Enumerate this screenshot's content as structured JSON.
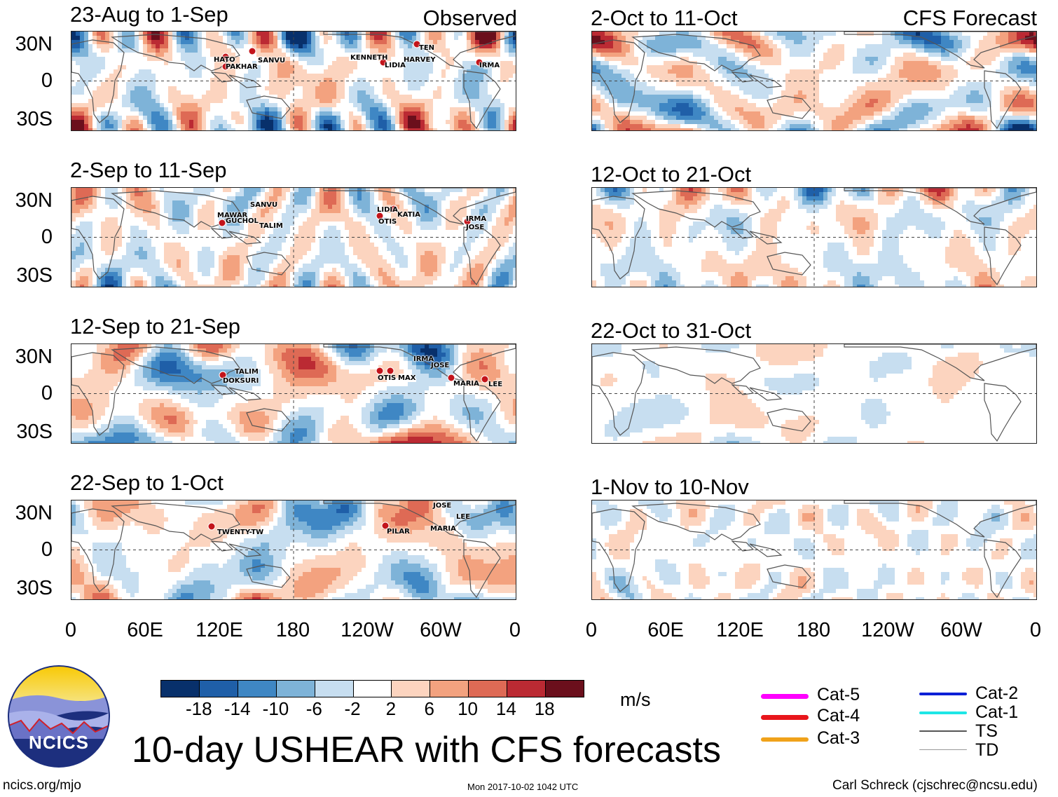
{
  "title": "10-day USHEAR with CFS forecasts",
  "header_left_tag": "Observed",
  "header_right_tag": "CFS Forecast",
  "observed_panels": [
    {
      "label": "23-Aug to 1-Sep",
      "storms": [
        "HATO",
        "SANVU",
        "PAKHAR",
        "TEN",
        "KENNETH",
        "LIDIA",
        "HARVEY",
        "IRMA"
      ]
    },
    {
      "label": "2-Sep to 11-Sep",
      "storms": [
        "SANVU",
        "MAWAR",
        "GUCHOL",
        "TALIM",
        "LIDIA",
        "KATIA",
        "OTIS",
        "IRMA",
        "JOSE"
      ]
    },
    {
      "label": "12-Sep to 21-Sep",
      "storms": [
        "TALIM",
        "DOKSURI",
        "IRMA",
        "JOSE",
        "OTIS",
        "MAX",
        "MARIA",
        "LEE"
      ]
    },
    {
      "label": "22-Sep to 1-Oct",
      "storms": [
        "TWENTY-TW",
        "JOSE",
        "LEE",
        "PILAR",
        "MARIA"
      ]
    }
  ],
  "forecast_panels": [
    {
      "label": "2-Oct to 11-Oct"
    },
    {
      "label": "12-Oct to 21-Oct"
    },
    {
      "label": "22-Oct to 31-Oct"
    },
    {
      "label": "1-Nov to 10-Nov"
    }
  ],
  "lat_labels": [
    "30N",
    "0",
    "30S"
  ],
  "lon_labels": [
    "0",
    "60E",
    "120E",
    "180",
    "120W",
    "60W",
    "0"
  ],
  "colorbar": {
    "unit": "m/s",
    "labels": [
      "-18",
      "-14",
      "-10",
      "-6",
      "-2",
      "2",
      "6",
      "10",
      "14",
      "18"
    ],
    "colors": [
      "#08306b",
      "#1f5fa8",
      "#3f87c4",
      "#7eb3d8",
      "#c7def0",
      "#ffffff",
      "#fcd4bf",
      "#f3a27f",
      "#de6a55",
      "#bb2a33",
      "#6b0f1c"
    ]
  },
  "legend": [
    {
      "label": "Cat-5",
      "color": "#ff00ff",
      "width": 7
    },
    {
      "label": "Cat-4",
      "color": "#e8161b",
      "width": 7
    },
    {
      "label": "Cat-3",
      "color": "#f0a21a",
      "width": 6
    },
    {
      "label": "Cat-2",
      "color": "#0a1fd6",
      "width": 4
    },
    {
      "label": "Cat-1",
      "color": "#1ee6e6",
      "width": 4
    },
    {
      "label": "TS",
      "color": "#555555",
      "width": 2.5
    },
    {
      "label": "TD",
      "color": "#999999",
      "width": 1.2
    }
  ],
  "logo_text": "NCICS",
  "footer_left": "ncics.org/mjo",
  "footer_center": "Mon 2017-10-02 1042 UTC",
  "footer_right": "Carl Schreck (cjschrec@ncsu.edu)"
}
